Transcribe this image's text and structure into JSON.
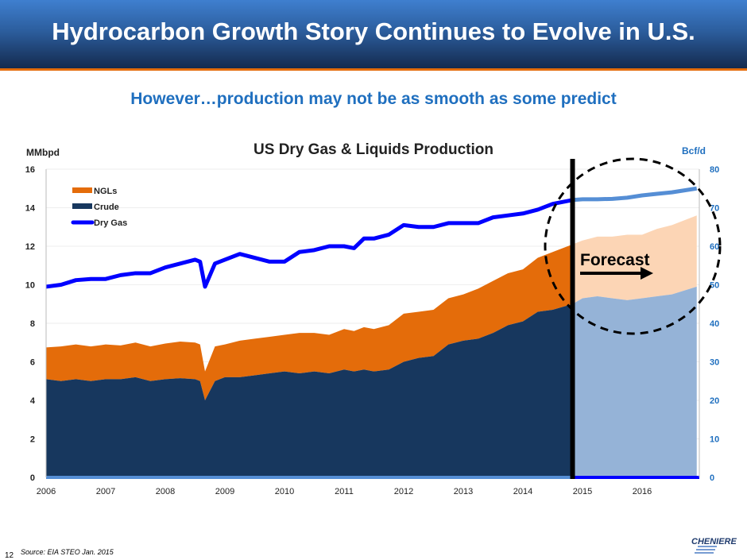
{
  "header": {
    "title": "Hydrocarbon Growth Story Continues to Evolve in U.S.",
    "subtitle": "However…production may not be as smooth as some predict"
  },
  "footer": {
    "source": "Source: EIA STEO  Jan. 2015",
    "page": "12",
    "logo": "CHENIERE"
  },
  "chart_data": {
    "type": "area",
    "title": "US Dry Gas & Liquids Production",
    "ylabel": "MMbpd",
    "y2label": "Bcf/d",
    "ylim": [
      0,
      16
    ],
    "y2lim": [
      0,
      80
    ],
    "yticks": [
      "0",
      "2",
      "4",
      "6",
      "8",
      "10",
      "12",
      "14",
      "16"
    ],
    "y2ticks": [
      "0",
      "10",
      "20",
      "30",
      "40",
      "50",
      "60",
      "70",
      "80"
    ],
    "xticks": [
      "2006",
      "2007",
      "2008",
      "2009",
      "2010",
      "2011",
      "2012",
      "2013",
      "2014",
      "2015",
      "2016"
    ],
    "legend": [
      "NGLs",
      "Crude",
      "Dry Gas"
    ],
    "legend_position": "top-left",
    "annotation": "Forecast",
    "forecast_start": "2014-11",
    "colors": {
      "ngl": "#e46c0a",
      "crude": "#17375e",
      "gas": "#0000ff",
      "ngl_forecast": "#fcd5b5",
      "crude_forecast": "#95b3d7",
      "gas_forecast": "#558ed5"
    },
    "columns": [
      "date",
      "crude_mmbpd",
      "crude_plus_ngl_mmbpd",
      "dry_gas_bcfd"
    ],
    "points": [
      [
        "2006-01",
        5.1,
        6.75,
        49.5
      ],
      [
        "2006-04",
        5.0,
        6.8,
        50
      ],
      [
        "2006-07",
        5.1,
        6.9,
        51.2
      ],
      [
        "2006-10",
        5.0,
        6.8,
        51.5
      ],
      [
        "2007-01",
        5.1,
        6.9,
        51.5
      ],
      [
        "2007-04",
        5.1,
        6.85,
        52.5
      ],
      [
        "2007-07",
        5.2,
        7.0,
        53
      ],
      [
        "2007-10",
        5.0,
        6.8,
        53
      ],
      [
        "2008-01",
        5.1,
        6.95,
        54.5
      ],
      [
        "2008-04",
        5.15,
        7.05,
        55.5
      ],
      [
        "2008-07",
        5.1,
        7.0,
        56.5
      ],
      [
        "2008-08",
        5.0,
        6.9,
        56
      ],
      [
        "2008-09",
        4.0,
        5.5,
        49.5
      ],
      [
        "2008-11",
        5.0,
        6.8,
        55.5
      ],
      [
        "2009-01",
        5.2,
        6.9,
        56.5
      ],
      [
        "2009-04",
        5.2,
        7.1,
        58
      ],
      [
        "2009-07",
        5.3,
        7.2,
        57
      ],
      [
        "2009-10",
        5.4,
        7.3,
        56
      ],
      [
        "2010-01",
        5.5,
        7.4,
        56
      ],
      [
        "2010-04",
        5.4,
        7.5,
        58.5
      ],
      [
        "2010-07",
        5.5,
        7.5,
        59
      ],
      [
        "2010-10",
        5.4,
        7.4,
        60
      ],
      [
        "2011-01",
        5.6,
        7.7,
        60
      ],
      [
        "2011-03",
        5.5,
        7.6,
        59.5
      ],
      [
        "2011-05",
        5.6,
        7.8,
        62
      ],
      [
        "2011-07",
        5.5,
        7.7,
        62
      ],
      [
        "2011-10",
        5.6,
        7.9,
        63
      ],
      [
        "2012-01",
        6.0,
        8.5,
        65.5
      ],
      [
        "2012-04",
        6.2,
        8.6,
        65
      ],
      [
        "2012-07",
        6.3,
        8.7,
        65
      ],
      [
        "2012-10",
        6.9,
        9.3,
        66
      ],
      [
        "2013-01",
        7.1,
        9.5,
        66
      ],
      [
        "2013-04",
        7.2,
        9.8,
        66
      ],
      [
        "2013-07",
        7.5,
        10.2,
        67.5
      ],
      [
        "2013-10",
        7.9,
        10.6,
        68
      ],
      [
        "2014-01",
        8.1,
        10.8,
        68.5
      ],
      [
        "2014-04",
        8.6,
        11.4,
        69.5
      ],
      [
        "2014-07",
        8.7,
        11.7,
        71
      ],
      [
        "2014-11",
        9.0,
        12.1,
        72
      ],
      [
        "2015-01",
        9.3,
        12.3,
        72.2
      ],
      [
        "2015-04",
        9.4,
        12.5,
        72.2
      ],
      [
        "2015-07",
        9.3,
        12.5,
        72.3
      ],
      [
        "2015-10",
        9.2,
        12.6,
        72.6
      ],
      [
        "2016-01",
        9.3,
        12.6,
        73.2
      ],
      [
        "2016-04",
        9.4,
        12.9,
        73.6
      ],
      [
        "2016-07",
        9.5,
        13.1,
        74
      ],
      [
        "2016-12",
        9.9,
        13.6,
        75
      ]
    ]
  }
}
